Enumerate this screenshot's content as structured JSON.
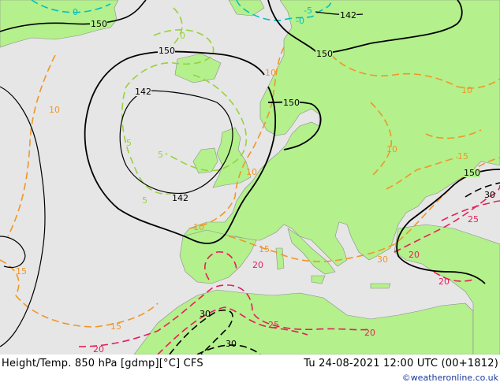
{
  "footer": {
    "title_left": "Height/Temp. 850 hPa [gdmp][°C] CFS",
    "title_right": "Tu 24-08-2021 12:00 UTC (00+1812)",
    "credit": "©weatheronline.co.uk"
  },
  "map": {
    "colors": {
      "sea": "#e6e6e6",
      "land": "#b4f08c",
      "height_contour": "#000000",
      "temp_0": "#00c0c0",
      "temp_5": "#96d23c",
      "temp_10_15": "#f09628",
      "temp_20_25": "#e61e5a",
      "temp_30": "#000000"
    },
    "height_labels": [
      "150",
      "150",
      "150",
      "150",
      "142",
      "142",
      "142",
      "150"
    ],
    "temp_labels": [
      "0",
      "0",
      "-5",
      "-0",
      "5",
      "5",
      "5",
      "10",
      "10",
      "10",
      "10",
      "10",
      "10",
      "15",
      "15",
      "15",
      "15",
      "20",
      "20",
      "20",
      "20",
      "20",
      "25",
      "25",
      "30",
      "30",
      "30",
      "30"
    ]
  }
}
